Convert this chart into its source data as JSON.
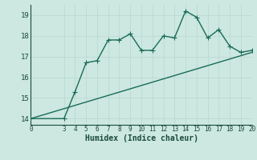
{
  "xlabel": "Humidex (Indice chaleur)",
  "curve_x": [
    0,
    3,
    4,
    5,
    6,
    7,
    8,
    9,
    10,
    11,
    12,
    13,
    14,
    15,
    16,
    17,
    18,
    19,
    20
  ],
  "curve_y": [
    14.0,
    14.0,
    15.3,
    16.7,
    16.8,
    17.8,
    17.8,
    18.1,
    17.3,
    17.3,
    18.0,
    17.9,
    19.2,
    18.9,
    17.9,
    18.3,
    17.5,
    17.2,
    17.3
  ],
  "line_x": [
    0,
    20
  ],
  "line_y": [
    14.0,
    17.2
  ],
  "xlim": [
    0,
    20
  ],
  "ylim": [
    13.7,
    19.5
  ],
  "yticks": [
    14,
    15,
    16,
    17,
    18,
    19
  ],
  "xticks": [
    0,
    3,
    4,
    5,
    6,
    7,
    8,
    9,
    10,
    11,
    12,
    13,
    14,
    15,
    16,
    17,
    18,
    19,
    20
  ],
  "line_color": "#1a6b5a",
  "bg_color": "#cce8e0",
  "grid_color": "#b8d8d0",
  "text_color": "#1a4a3a",
  "markersize": 2.5,
  "linewidth": 1.0
}
